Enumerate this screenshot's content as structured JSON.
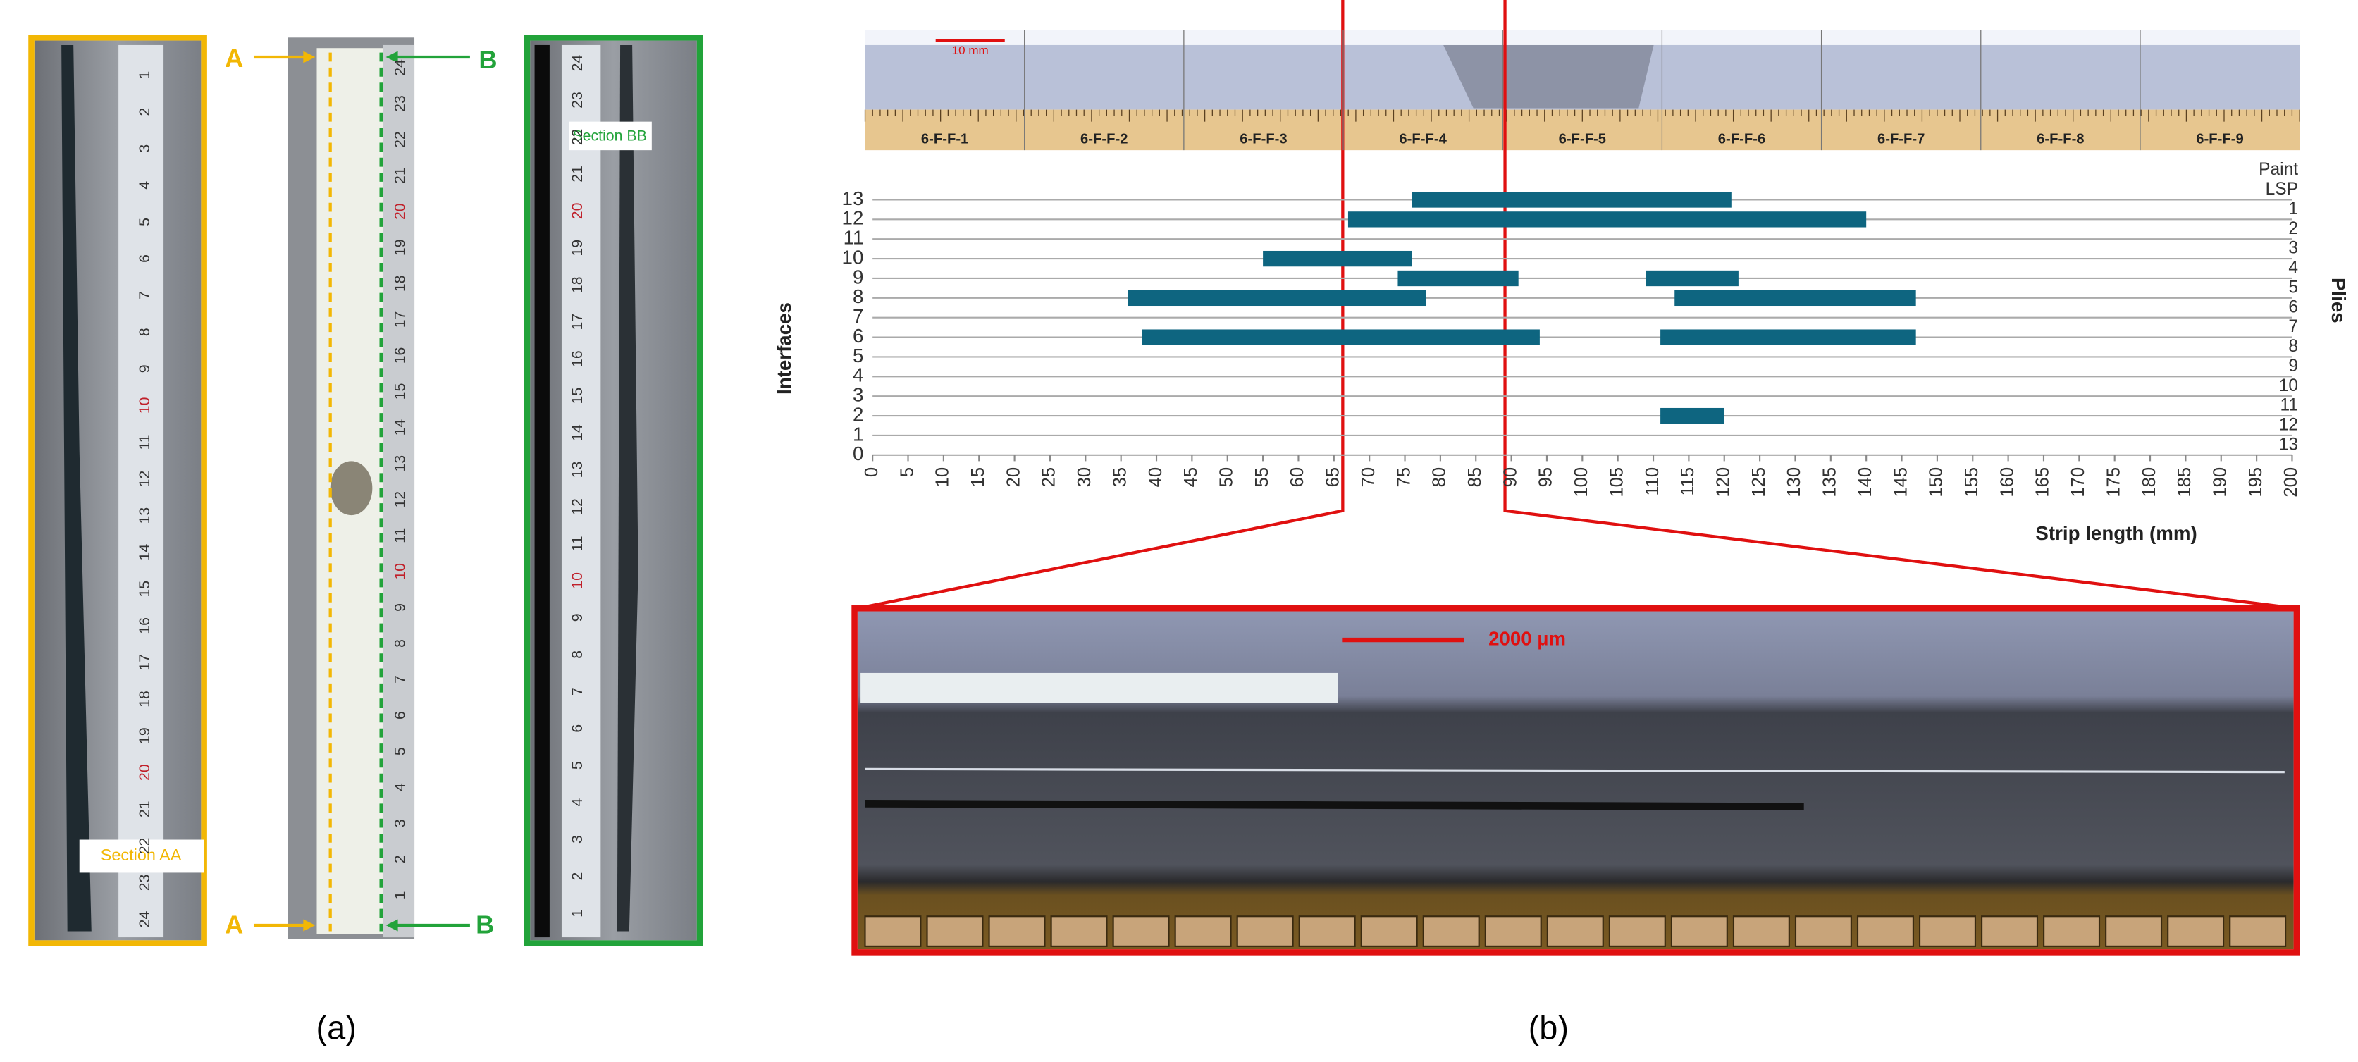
{
  "figure": {
    "panel_a_label": "(a)",
    "panel_b_label": "(b)",
    "section_aa": "Section AA",
    "section_bb": "Section BB",
    "marker_a_top": "A",
    "marker_a_bottom": "A",
    "marker_b_top": "B",
    "marker_b_bottom": "B",
    "scale_top": "10 mm",
    "scale_bottom": "2000 µm",
    "strip_labels": [
      "6-F-F-1",
      "6-F-F-2",
      "6-F-F-3",
      "6-F-F-4",
      "6-F-F-5",
      "6-F-F-6",
      "6-F-F-7",
      "6-F-F-8",
      "6-F-F-9"
    ],
    "rulers": {
      "left": [
        1,
        2,
        3,
        4,
        5,
        6,
        7,
        8,
        9,
        10,
        11,
        12,
        13,
        14,
        15,
        16,
        17,
        18,
        19,
        20,
        21,
        22,
        23,
        24
      ],
      "middle": [
        24,
        23,
        22,
        21,
        20,
        19,
        18,
        17,
        16,
        15,
        14,
        13,
        12,
        11,
        10,
        9,
        8,
        7,
        6,
        5,
        4,
        3,
        2,
        1
      ],
      "right": [
        24,
        23,
        22,
        21,
        20,
        19,
        18,
        17,
        16,
        15,
        14,
        13,
        12,
        11,
        10,
        9,
        8,
        7,
        6,
        5,
        4,
        3,
        2,
        1
      ]
    }
  },
  "chart_data": {
    "type": "bar",
    "x_label": "Strip length (mm)",
    "y_label": "Interfaces",
    "y2_label": "Plies",
    "xlim": [
      0,
      200
    ],
    "xticks": [
      0,
      5,
      10,
      15,
      20,
      25,
      30,
      35,
      40,
      45,
      50,
      55,
      60,
      65,
      70,
      75,
      80,
      85,
      90,
      95,
      100,
      105,
      110,
      115,
      120,
      125,
      130,
      135,
      140,
      145,
      150,
      155,
      160,
      165,
      170,
      175,
      180,
      185,
      190,
      195,
      200
    ],
    "ylim": [
      0,
      13
    ],
    "yticks": [
      0,
      1,
      2,
      3,
      4,
      5,
      6,
      7,
      8,
      9,
      10,
      11,
      12,
      13
    ],
    "y2_labels": [
      "Paint",
      "LSP",
      "1",
      "2",
      "3",
      "4",
      "5",
      "6",
      "7",
      "8",
      "9",
      "10",
      "11",
      "12",
      "13"
    ],
    "color": "#0e6580",
    "grid": true,
    "bars": [
      {
        "interface": 13,
        "start": 76,
        "end": 121
      },
      {
        "interface": 12,
        "start": 67,
        "end": 140
      },
      {
        "interface": 10,
        "start": 55,
        "end": 76
      },
      {
        "interface": 9,
        "start": 74,
        "end": 91
      },
      {
        "interface": 9,
        "start": 109,
        "end": 122
      },
      {
        "interface": 8,
        "start": 36,
        "end": 78
      },
      {
        "interface": 8,
        "start": 113,
        "end": 147
      },
      {
        "interface": 6,
        "start": 38,
        "end": 94
      },
      {
        "interface": 6,
        "start": 111,
        "end": 147
      },
      {
        "interface": 2,
        "start": 111,
        "end": 120
      }
    ]
  }
}
